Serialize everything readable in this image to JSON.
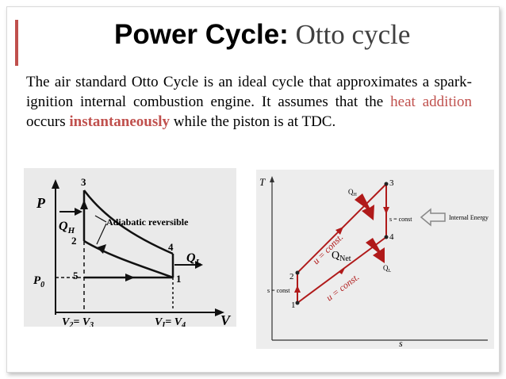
{
  "slide": {
    "title_bold": "Power Cycle:",
    "title_rest": "Otto cycle",
    "paragraph": {
      "s1": "The air standard Otto Cycle is an ideal cycle that approximates a spark- ignition internal combustion engine. It assumes that the",
      "h1": "heat addition",
      "s2": "occurs",
      "h2": "instantaneously",
      "s3": "while the piston is at TDC."
    }
  },
  "pv_diagram": {
    "y_axis": "P",
    "x_axis": "V",
    "annotation": "Adiabatic reversible",
    "qh": "Q",
    "qh_sub": "H",
    "ql": "Q",
    "ql_sub": "L",
    "p0": "P",
    "p0_sub": "0",
    "v_left": "V",
    "v_left_sub1": "2",
    "v_left_eq": "= V",
    "v_left_sub2": "3",
    "v_right": "V",
    "v_right_sub1": "I",
    "v_right_eq": "= V",
    "v_right_sub2": "4",
    "points": [
      "1",
      "2",
      "3",
      "4",
      "5"
    ]
  },
  "ts_diagram": {
    "y_axis": "T",
    "x_axis": "s",
    "qh": "Q",
    "qh_sub": "H",
    "ql": "Q",
    "ql_sub": "L",
    "qnet": "Q",
    "qnet_sub": "Net",
    "s_const_top": "s = const",
    "s_const_bottom": "s = const",
    "u_const": "u = const.",
    "internal_energy": "Internal Energy",
    "points": [
      "1",
      "2",
      "3",
      "4"
    ],
    "accent": "#b01a1a"
  }
}
